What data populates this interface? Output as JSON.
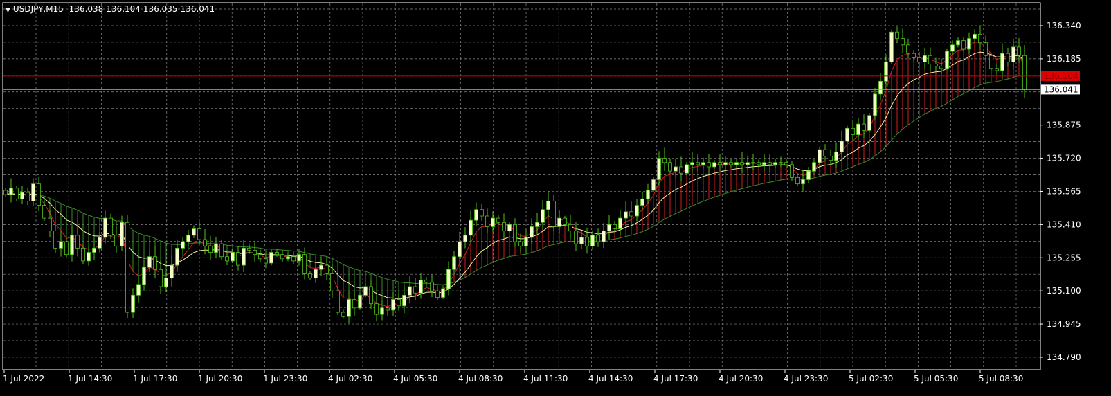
{
  "header": {
    "symbol": "USDJPY,M15",
    "open": "136.038",
    "high": "136.104",
    "low": "136.035",
    "close": "136.041"
  },
  "colors": {
    "background": "#000000",
    "grid": "#8c8c8c",
    "bull_body": "#f4ffc8",
    "bear_body": "#000000",
    "wick": "#52c41a",
    "ma_fast": "#d02020",
    "ma_mid": "#f5f0a0",
    "ma_slow": "#3a8a2a",
    "ask_line": "#c00000",
    "bid_line": "#aaaaaa"
  },
  "chart_data": {
    "type": "candlestick",
    "symbol": "USDJPY",
    "timeframe": "M15",
    "ylim": [
      134.75,
      136.4
    ],
    "grid": true,
    "price_ticks": [
      "136.340",
      "136.185",
      "135.875",
      "135.720",
      "135.565",
      "135.410",
      "135.255",
      "135.100",
      "134.945",
      "134.790"
    ],
    "time_ticks": [
      "1 Jul 2022",
      "1 Jul 14:30",
      "1 Jul 17:30",
      "1 Jul 20:30",
      "1 Jul 23:30",
      "4 Jul 02:30",
      "4 Jul 05:30",
      "4 Jul 08:30",
      "4 Jul 11:30",
      "4 Jul 14:30",
      "4 Jul 17:30",
      "4 Jul 20:30",
      "4 Jul 23:30",
      "5 Jul 02:30",
      "5 Jul 05:30",
      "5 Jul 08:30"
    ],
    "ask_price": "136.104",
    "bid_price": "136.041",
    "closes": [
      135.55,
      135.58,
      135.53,
      135.56,
      135.52,
      135.6,
      135.5,
      135.44,
      135.38,
      135.3,
      135.33,
      135.27,
      135.36,
      135.3,
      135.24,
      135.28,
      135.3,
      135.35,
      135.44,
      135.36,
      135.31,
      135.42,
      135.0,
      135.08,
      135.13,
      135.21,
      135.26,
      135.2,
      135.12,
      135.16,
      135.22,
      135.3,
      135.33,
      135.36,
      135.39,
      135.34,
      135.31,
      135.28,
      135.32,
      135.26,
      135.24,
      135.28,
      135.22,
      135.3,
      135.29,
      135.27,
      135.25,
      135.23,
      135.28,
      135.27,
      135.25,
      135.26,
      135.24,
      135.27,
      135.18,
      135.16,
      135.2,
      135.22,
      135.18,
      135.1,
      135.0,
      134.98,
      135.06,
      135.02,
      135.08,
      135.12,
      135.04,
      134.99,
      135.02,
      135.01,
      135.06,
      135.03,
      135.08,
      135.12,
      135.09,
      135.15,
      135.14,
      135.1,
      135.07,
      135.11,
      135.2,
      135.26,
      135.33,
      135.36,
      135.43,
      135.48,
      135.45,
      135.4,
      135.44,
      135.42,
      135.38,
      135.41,
      135.33,
      135.31,
      135.35,
      135.4,
      135.42,
      135.48,
      135.52,
      135.4,
      135.44,
      135.41,
      135.38,
      135.32,
      135.35,
      135.31,
      135.36,
      135.33,
      135.38,
      135.41,
      135.39,
      135.44,
      135.47,
      135.45,
      135.5,
      135.53,
      135.57,
      135.62,
      135.72,
      135.7,
      135.66,
      135.68,
      135.65,
      135.69,
      135.7,
      135.69,
      135.7,
      135.68,
      135.7,
      135.69,
      135.7,
      135.69,
      135.7,
      135.69,
      135.7,
      135.7,
      135.69,
      135.7,
      135.69,
      135.7,
      135.7,
      135.69,
      135.63,
      135.6,
      135.62,
      135.66,
      135.7,
      135.76,
      135.73,
      135.71,
      135.75,
      135.8,
      135.86,
      135.83,
      135.88,
      135.85,
      135.92,
      136.02,
      136.08,
      136.17,
      136.31,
      136.28,
      136.25,
      136.21,
      136.19,
      136.17,
      136.2,
      136.16,
      136.15,
      136.14,
      136.22,
      136.25,
      136.27,
      136.23,
      136.28,
      136.3,
      136.26,
      136.2,
      136.14,
      136.13,
      136.21,
      136.17,
      136.24,
      136.2,
      136.041
    ]
  }
}
